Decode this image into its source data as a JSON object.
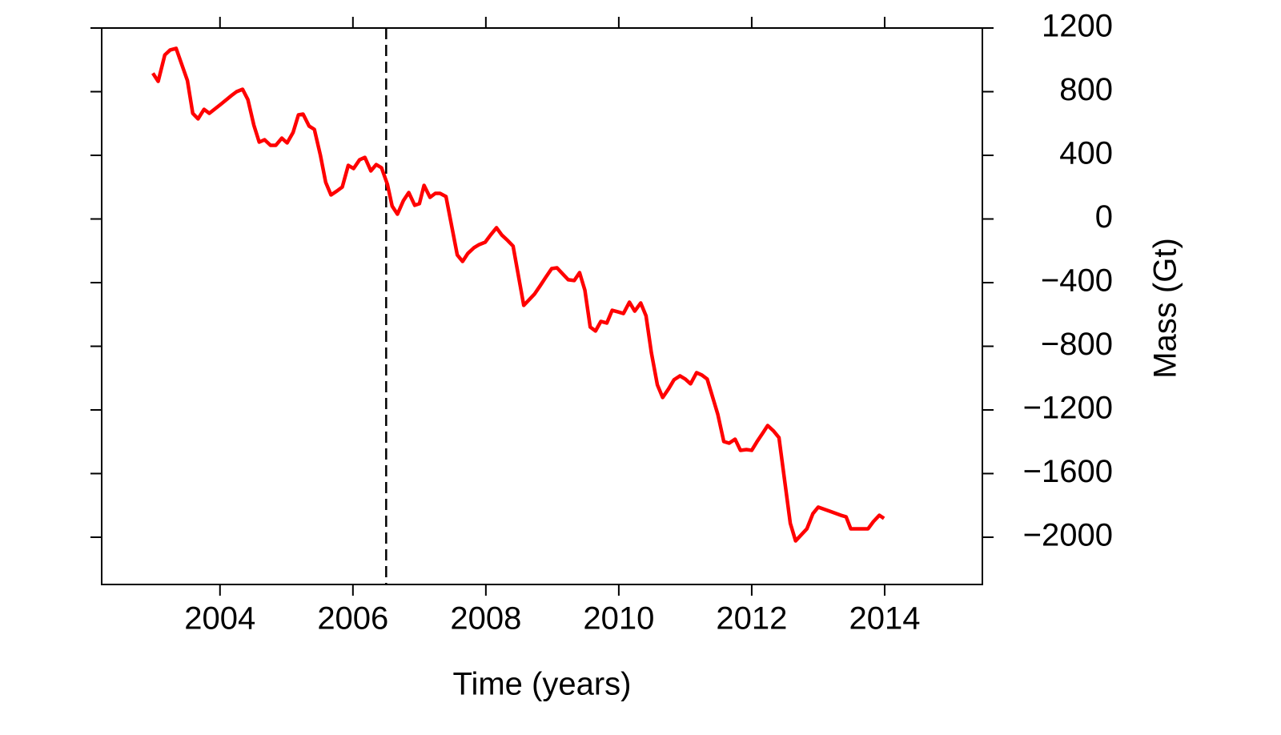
{
  "chart_data": {
    "type": "line",
    "x_label": "Time (years)",
    "y_label": "Mass (Gt)",
    "x": [
      2002.99,
      2003.07,
      2003.17,
      2003.25,
      2003.34,
      2003.51,
      2003.59,
      2003.67,
      2003.76,
      2003.84,
      2004.01,
      2004.17,
      2004.25,
      2004.34,
      2004.42,
      2004.51,
      2004.59,
      2004.67,
      2004.76,
      2004.84,
      2004.93,
      2005.01,
      2005.1,
      2005.18,
      2005.25,
      2005.34,
      2005.42,
      2005.51,
      2005.59,
      2005.67,
      2005.76,
      2005.84,
      2005.93,
      2006.01,
      2006.1,
      2006.18,
      2006.27,
      2006.35,
      2006.43,
      2006.52,
      2006.59,
      2006.67,
      2006.76,
      2006.84,
      2006.93,
      2007.0,
      2007.07,
      2007.16,
      2007.24,
      2007.31,
      2007.4,
      2007.57,
      2007.65,
      2007.73,
      2007.82,
      2007.9,
      2007.99,
      2008.07,
      2008.16,
      2008.24,
      2008.33,
      2008.41,
      2008.57,
      2008.65,
      2008.73,
      2008.82,
      2008.9,
      2008.99,
      2009.07,
      2009.16,
      2009.24,
      2009.33,
      2009.41,
      2009.49,
      2009.57,
      2009.65,
      2009.73,
      2009.82,
      2009.9,
      2009.99,
      2010.07,
      2010.16,
      2010.24,
      2010.33,
      2010.41,
      2010.49,
      2010.58,
      2010.66,
      2010.75,
      2010.83,
      2010.92,
      2011.0,
      2011.08,
      2011.17,
      2011.25,
      2011.33,
      2011.49,
      2011.58,
      2011.66,
      2011.75,
      2011.83,
      2011.92,
      2012.0,
      2012.08,
      2012.17,
      2012.24,
      2012.33,
      2012.41,
      2012.58,
      2012.66,
      2012.75,
      2012.83,
      2012.92,
      2013.0,
      2013.17,
      2013.34,
      2013.42,
      2013.49,
      2013.66,
      2013.75,
      2013.83,
      2013.92,
      2013.99
    ],
    "series": [
      {
        "color": "#ff0000",
        "values": [
          916,
          865,
          1031,
          1062,
          1072,
          870,
          664,
          629,
          689,
          664,
          720,
          775,
          800,
          815,
          750,
          589,
          483,
          498,
          463,
          463,
          508,
          478,
          544,
          654,
          659,
          584,
          563,
          402,
          231,
          151,
          176,
          201,
          337,
          317,
          372,
          387,
          302,
          342,
          322,
          216,
          81,
          30,
          116,
          166,
          86,
          96,
          211,
          136,
          161,
          161,
          141,
          -226,
          -267,
          -216,
          -181,
          -161,
          -146,
          -101,
          -55,
          -101,
          -136,
          -171,
          -543,
          -508,
          -473,
          -418,
          -367,
          -312,
          -307,
          -347,
          -382,
          -387,
          -337,
          -448,
          -679,
          -704,
          -644,
          -654,
          -574,
          -584,
          -594,
          -523,
          -579,
          -528,
          -609,
          -840,
          -1042,
          -1122,
          -1067,
          -1011,
          -986,
          -1006,
          -1036,
          -966,
          -981,
          -1006,
          -1228,
          -1399,
          -1409,
          -1384,
          -1454,
          -1449,
          -1454,
          -1399,
          -1343,
          -1298,
          -1333,
          -1374,
          -1912,
          -2023,
          -1983,
          -1947,
          -1852,
          -1811,
          -1836,
          -1862,
          -1872,
          -1947,
          -1947,
          -1947,
          -1902,
          -1862,
          -1882
        ]
      }
    ],
    "xlim": [
      2002.22,
      2015.47
    ],
    "xticks": [
      2004,
      2006,
      2008,
      2010,
      2012,
      2014
    ],
    "ylim": [
      -2297,
      1200
    ],
    "yticks": [
      1200,
      800,
      400,
      0,
      {
        "value": -400,
        "label": "−400"
      },
      {
        "value": -800,
        "label": "−800"
      },
      {
        "value": -1200,
        "label": "−1200"
      },
      {
        "value": -1600,
        "label": "−1600"
      },
      {
        "value": -2000,
        "label": "−2000"
      }
    ],
    "y_axis_side": "right",
    "vline": 2006.5,
    "vline_style": "dashed",
    "grid": false
  }
}
